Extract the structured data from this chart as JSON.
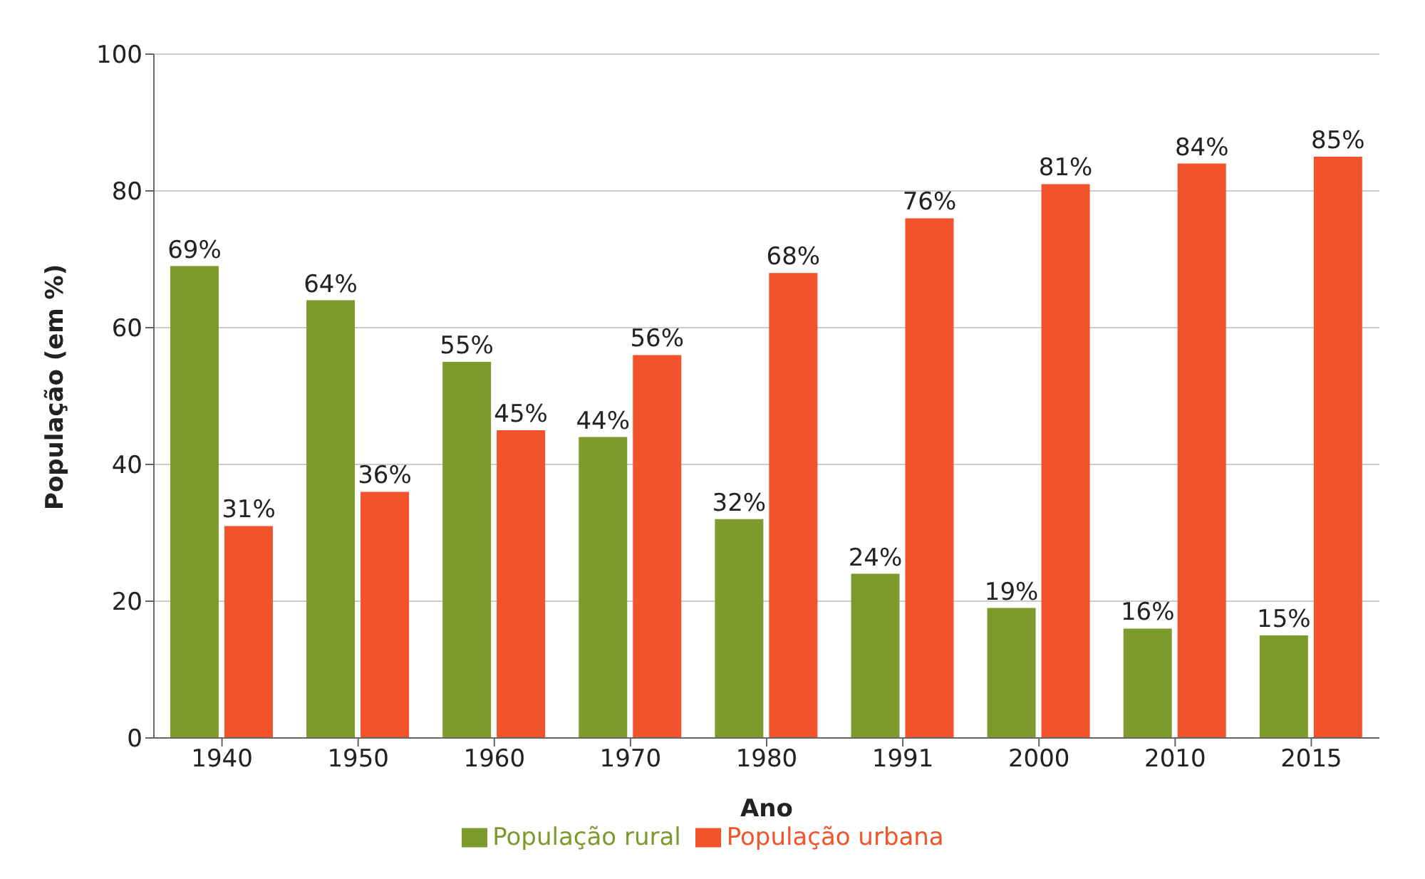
{
  "chart_data": {
    "type": "bar",
    "xlabel": "Ano",
    "ylabel": "População (em %)",
    "categories": [
      "1940",
      "1950",
      "1960",
      "1970",
      "1980",
      "1991",
      "2000",
      "2010",
      "2015"
    ],
    "series": [
      {
        "name": "População rural",
        "color": "#7d9a2c",
        "values": [
          69,
          64,
          55,
          44,
          32,
          24,
          19,
          16,
          15
        ],
        "value_labels": [
          "69%",
          "64%",
          "55%",
          "44%",
          "32%",
          "24%",
          "19%",
          "16%",
          "15%"
        ]
      },
      {
        "name": "População urbana",
        "color": "#f2532b",
        "values": [
          31,
          36,
          45,
          56,
          68,
          76,
          81,
          84,
          85
        ],
        "value_labels": [
          "31%",
          "36%",
          "45%",
          "56%",
          "68%",
          "76%",
          "81%",
          "84%",
          "85%"
        ]
      }
    ],
    "ylim": [
      0,
      100
    ],
    "yticks": [
      0,
      20,
      40,
      60,
      80,
      100
    ],
    "grid": "y",
    "legend": "bottom"
  }
}
